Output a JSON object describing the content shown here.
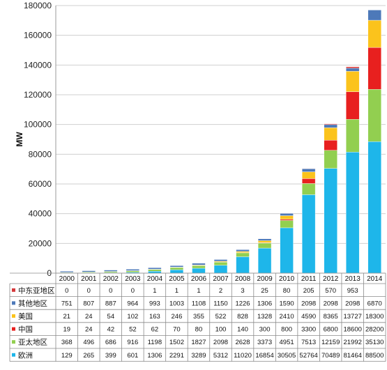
{
  "chart_data": {
    "type": "bar",
    "stacked": true,
    "ylabel": "MW",
    "ylim": [
      0,
      180000
    ],
    "yticks": [
      "0",
      "20000",
      "40000",
      "60000",
      "80000",
      "100000",
      "120000",
      "140000",
      "160000",
      "180000"
    ],
    "categories": [
      "2000",
      "2001",
      "2002",
      "2003",
      "2004",
      "2005",
      "2006",
      "2007",
      "2008",
      "2009",
      "2010",
      "2011",
      "2012",
      "2013",
      "2014"
    ],
    "grid": true,
    "series": [
      {
        "name": "欧洲",
        "color": "#1EB6EA",
        "values": [
          129,
          265,
          399,
          601,
          1306,
          2291,
          3289,
          5312,
          11020,
          16854,
          30505,
          52764,
          70489,
          81464,
          88500
        ],
        "labels": [
          "129",
          "265",
          "399",
          "601",
          "1306",
          "2291",
          "3289",
          "5312",
          "11020",
          "16854",
          "30505",
          "52764",
          "70489",
          "81464",
          "88500"
        ]
      },
      {
        "name": "亚太地区",
        "color": "#92CF50",
        "values": [
          368,
          496,
          686,
          916,
          1198,
          1502,
          1827,
          2098,
          2628,
          3373,
          4951,
          7513,
          12159,
          21992,
          35130
        ],
        "labels": [
          "368",
          "496",
          "686",
          "916",
          "1198",
          "1502",
          "1827",
          "2098",
          "2628",
          "3373",
          "4951",
          "7513",
          "12159",
          "21992",
          "35130"
        ]
      },
      {
        "name": "中国",
        "color": "#E8201F",
        "values": [
          19,
          24,
          42,
          52,
          62,
          70,
          80,
          100,
          140,
          300,
          800,
          3300,
          6800,
          18600,
          28200
        ],
        "labels": [
          "19",
          "24",
          "42",
          "52",
          "62",
          "70",
          "80",
          "100",
          "140",
          "300",
          "800",
          "3300",
          "6800",
          "18600",
          "28200"
        ]
      },
      {
        "name": "美国",
        "color": "#FBC31C",
        "values": [
          21,
          24,
          54,
          102,
          163,
          246,
          355,
          522,
          828,
          1328,
          2410,
          4590,
          8365,
          13727,
          18300
        ],
        "labels": [
          "21",
          "24",
          "54",
          "102",
          "163",
          "246",
          "355",
          "522",
          "828",
          "1328",
          "2410",
          "4590",
          "8365",
          "13727",
          "18300"
        ]
      },
      {
        "name": "其他地区",
        "color": "#4D79B9",
        "values": [
          751,
          807,
          887,
          964,
          993,
          1003,
          1108,
          1150,
          1226,
          1306,
          1590,
          2098,
          2098,
          2098,
          6870
        ],
        "labels": [
          "751",
          "807",
          "887",
          "964",
          "993",
          "1003",
          "1108",
          "1150",
          "1226",
          "1306",
          "1590",
          "2098",
          "2098",
          "2098",
          "6870"
        ]
      },
      {
        "name": "中东亚地区",
        "color": "#D5383A",
        "values": [
          0,
          0,
          0,
          0,
          1,
          1,
          1,
          2,
          3,
          25,
          80,
          205,
          570,
          953,
          0
        ],
        "labels": [
          "0",
          "0",
          "0",
          "0",
          "1",
          "1",
          "1",
          "2",
          "3",
          "25",
          "80",
          "205",
          "570",
          "953",
          ""
        ]
      }
    ],
    "table_row_order": [
      "中东亚地区",
      "其他地区",
      "美国",
      "中国",
      "亚太地区",
      "欧洲"
    ]
  }
}
